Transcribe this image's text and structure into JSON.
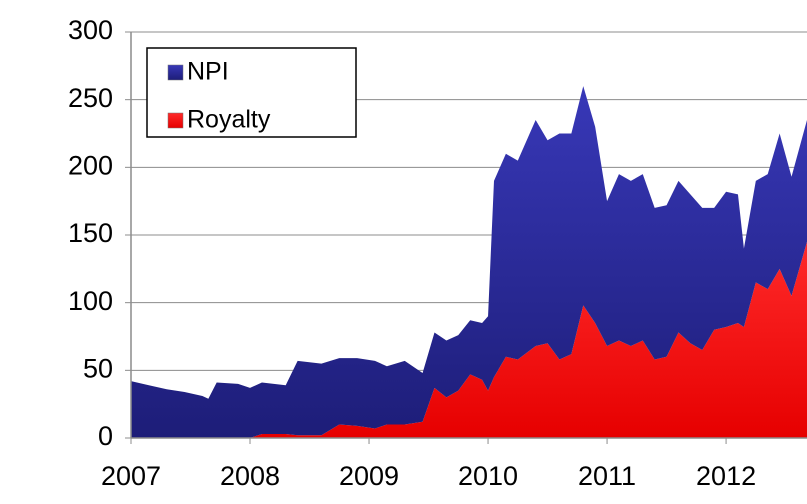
{
  "chart_data": {
    "type": "area",
    "stacked": true,
    "x": [
      2007.0,
      2007.15,
      2007.3,
      2007.45,
      2007.6,
      2007.65,
      2007.72,
      2007.9,
      2008.0,
      2008.1,
      2008.3,
      2008.4,
      2008.6,
      2008.75,
      2008.9,
      2009.05,
      2009.15,
      2009.3,
      2009.45,
      2009.55,
      2009.65,
      2009.75,
      2009.85,
      2009.95,
      2010.0,
      2010.05,
      2010.15,
      2010.25,
      2010.4,
      2010.5,
      2010.6,
      2010.7,
      2010.8,
      2010.9,
      2011.0,
      2011.1,
      2011.2,
      2011.3,
      2011.4,
      2011.5,
      2011.6,
      2011.7,
      2011.8,
      2011.9,
      2012.0,
      2012.1,
      2012.15,
      2012.25,
      2012.35,
      2012.45,
      2012.55,
      2012.68
    ],
    "series": [
      {
        "name": "Royalty",
        "color": "#ff0000",
        "values": [
          0,
          0,
          0,
          0,
          0,
          0,
          0,
          0,
          0,
          3,
          3,
          2,
          2,
          10,
          9,
          7,
          10,
          10,
          12,
          37,
          30,
          35,
          47,
          43,
          35,
          45,
          60,
          58,
          68,
          70,
          58,
          62,
          98,
          85,
          68,
          72,
          68,
          72,
          58,
          60,
          78,
          70,
          65,
          80,
          82,
          85,
          82,
          115,
          110,
          125,
          105,
          145
        ]
      },
      {
        "name": "NPI",
        "color": "#2b2b9a",
        "values": [
          42,
          39,
          36,
          34,
          31,
          29,
          41,
          40,
          37,
          38,
          36,
          55,
          53,
          49,
          50,
          50,
          43,
          47,
          36,
          41,
          42,
          41,
          40,
          42,
          55,
          145,
          150,
          147,
          167,
          150,
          167,
          163,
          162,
          145,
          107,
          123,
          122,
          123,
          112,
          112,
          112,
          110,
          105,
          90,
          100,
          95,
          58,
          75,
          85,
          100,
          88,
          90
        ]
      }
    ],
    "legend_order": [
      "NPI",
      "Royalty"
    ],
    "xlim": [
      2007,
      2012.68
    ],
    "xticks": [
      2007,
      2008,
      2009,
      2010,
      2011,
      2012
    ],
    "ylim": [
      0,
      300
    ],
    "yticks": [
      0,
      50,
      100,
      150,
      200,
      250,
      300
    ],
    "grid": true,
    "legend": "upper left"
  }
}
